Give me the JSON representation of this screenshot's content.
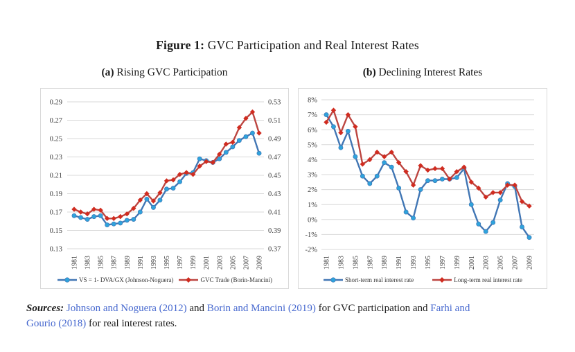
{
  "figure": {
    "title_prefix": "Figure 1:",
    "title_text": "GVC Participation and Real Interest Rates"
  },
  "panels": [
    {
      "label": "(a)",
      "title": "Rising GVC Participation"
    },
    {
      "label": "(b)",
      "title": "Declining Interest Rates"
    }
  ],
  "colors": {
    "gridline": "#d9d9d9",
    "chart_border": "#d9d9d9",
    "axis_text": "#404040",
    "blue_line": "#4176b4",
    "blue_marker": "#2fa3dc",
    "red_line": "#bc4540",
    "red_marker": "#d02c20",
    "citation": "#4668cf"
  },
  "chart_data": [
    {
      "type": "line",
      "title": "(a) Rising GVC Participation",
      "grid": true,
      "legend_position": "bottom",
      "x": [
        1981,
        1982,
        1983,
        1984,
        1985,
        1986,
        1987,
        1988,
        1989,
        1990,
        1991,
        1992,
        1993,
        1994,
        1995,
        1996,
        1997,
        1998,
        1999,
        2000,
        2001,
        2002,
        2003,
        2004,
        2005,
        2006,
        2007,
        2008,
        2009
      ],
      "x_tick_labels": [
        "1981",
        "1983",
        "1985",
        "1987",
        "1989",
        "1991",
        "1993",
        "1995",
        "1997",
        "1999",
        "2001",
        "2003",
        "2005",
        "2007",
        "2009"
      ],
      "axes": {
        "left": {
          "min": 0.13,
          "max": 0.29,
          "tick_labels": [
            "0.29",
            "0.27",
            "0.25",
            "0.23",
            "0.21",
            "0.19",
            "0.17",
            "0.15",
            "0.13"
          ]
        },
        "right": {
          "min": 0.37,
          "max": 0.53,
          "tick_labels": [
            "0.53",
            "0.51",
            "0.49",
            "0.47",
            "0.45",
            "0.43",
            "0.41",
            "0.39",
            "0.37"
          ]
        }
      },
      "series": [
        {
          "name": "VS = 1- DVA/GX (Johnson-Noguera)",
          "axis": "left",
          "marker": "circle",
          "line_color": "#4176b4",
          "marker_color": "#2fa3dc",
          "values": [
            0.166,
            0.164,
            0.162,
            0.165,
            0.166,
            0.156,
            0.157,
            0.158,
            0.161,
            0.162,
            0.17,
            0.184,
            0.175,
            0.183,
            0.195,
            0.196,
            0.203,
            0.212,
            0.213,
            0.228,
            0.226,
            0.224,
            0.228,
            0.235,
            0.241,
            0.248,
            0.252,
            0.256,
            0.234
          ]
        },
        {
          "name": "GVC Trade (Borin-Mancini)",
          "axis": "right",
          "marker": "diamond",
          "line_color": "#bc4540",
          "marker_color": "#d02c20",
          "values": [
            0.413,
            0.41,
            0.408,
            0.413,
            0.412,
            0.403,
            0.403,
            0.405,
            0.408,
            0.414,
            0.423,
            0.43,
            0.422,
            0.431,
            0.444,
            0.445,
            0.451,
            0.453,
            0.451,
            0.46,
            0.465,
            0.464,
            0.473,
            0.484,
            0.486,
            0.502,
            0.512,
            0.519,
            0.496
          ]
        }
      ]
    },
    {
      "type": "line",
      "title": "(b) Declining Interest Rates",
      "grid": true,
      "legend_position": "bottom",
      "x": [
        1981,
        1982,
        1983,
        1984,
        1985,
        1986,
        1987,
        1988,
        1989,
        1990,
        1991,
        1992,
        1993,
        1994,
        1995,
        1996,
        1997,
        1998,
        1999,
        2000,
        2001,
        2002,
        2003,
        2004,
        2005,
        2006,
        2007,
        2008,
        2009
      ],
      "x_tick_labels": [
        "1981",
        "1983",
        "1985",
        "1987",
        "1989",
        "1991",
        "1993",
        "1995",
        "1997",
        "1999",
        "2001",
        "2003",
        "2005",
        "2007",
        "2009"
      ],
      "axes": {
        "left": {
          "min": -2,
          "max": 8,
          "tick_labels": [
            "8%",
            "7%",
            "6%",
            "5%",
            "4%",
            "3%",
            "2%",
            "1%",
            "0%",
            "-1%",
            "-2%"
          ]
        }
      },
      "series": [
        {
          "name": "Short-term real interest rate",
          "axis": "left",
          "marker": "circle",
          "line_color": "#4176b4",
          "marker_color": "#2fa3dc",
          "values": [
            7.0,
            6.2,
            4.8,
            5.9,
            4.2,
            2.9,
            2.4,
            2.9,
            3.8,
            3.5,
            2.1,
            0.5,
            0.1,
            2.0,
            2.6,
            2.6,
            2.7,
            2.7,
            2.8,
            3.4,
            1.0,
            -0.3,
            -0.8,
            -0.2,
            1.3,
            2.4,
            2.2,
            -0.5,
            -1.2
          ]
        },
        {
          "name": "Long-term real interest rate",
          "axis": "left",
          "marker": "diamond",
          "line_color": "#bc4540",
          "marker_color": "#d02c20",
          "values": [
            6.5,
            7.3,
            5.8,
            7.0,
            6.2,
            3.7,
            4.0,
            4.5,
            4.2,
            4.5,
            3.8,
            3.2,
            2.3,
            3.6,
            3.3,
            3.4,
            3.4,
            2.7,
            3.2,
            3.5,
            2.5,
            2.1,
            1.5,
            1.8,
            1.8,
            2.3,
            2.3,
            1.2,
            0.9
          ]
        }
      ]
    }
  ],
  "sources": {
    "parts": [
      {
        "type": "label",
        "text": "Sources:"
      },
      {
        "type": "plain",
        "text": " "
      },
      {
        "type": "cite",
        "text": "Johnson and Noguera (2012)"
      },
      {
        "type": "plain",
        "text": " and "
      },
      {
        "type": "cite",
        "text": "Borin and Mancini (2019)"
      },
      {
        "type": "plain",
        "text": " for GVC participation and "
      },
      {
        "type": "cite",
        "text": "Farhi and"
      },
      {
        "type": "break",
        "text": ""
      },
      {
        "type": "cite",
        "text": "Gourio (2018)"
      },
      {
        "type": "plain",
        "text": " for real interest rates."
      }
    ]
  }
}
